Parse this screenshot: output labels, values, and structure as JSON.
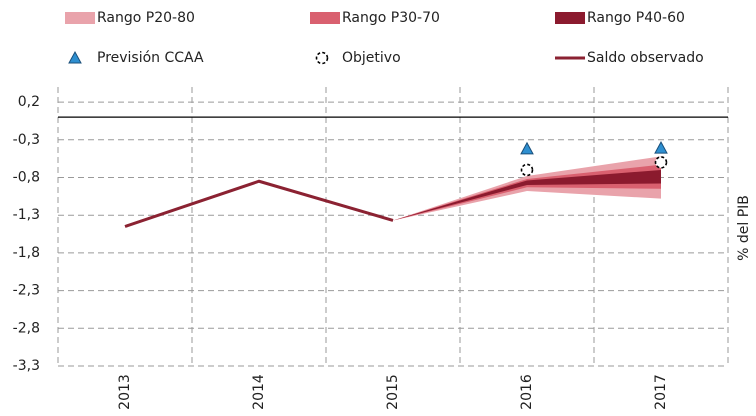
{
  "chart_data": {
    "type": "fan",
    "y_label": "% del PIB",
    "categories": [
      "2013",
      "2014",
      "2015",
      "2016",
      "2017"
    ],
    "ylim": [
      -3.3,
      0.4
    ],
    "yticks": [
      {
        "value": 0.2,
        "label": "0,2"
      },
      {
        "value": -0.3,
        "label": "-0,3"
      },
      {
        "value": -0.8,
        "label": "-0,8"
      },
      {
        "value": -1.3,
        "label": "-1,3"
      },
      {
        "value": -1.8,
        "label": "-1,8"
      },
      {
        "value": -2.3,
        "label": "-2,3"
      },
      {
        "value": -2.8,
        "label": "-2,8"
      },
      {
        "value": -3.3,
        "label": "-3,3"
      }
    ],
    "grid": true,
    "bands": [
      {
        "name": "Rango P20-80",
        "color": "#e9a3ab",
        "low": [
          null,
          null,
          -1.37,
          -0.98,
          -1.08
        ],
        "high": [
          null,
          null,
          -1.37,
          -0.78,
          -0.52
        ]
      },
      {
        "name": "Rango P30-70",
        "color": "#d9606f",
        "low": [
          null,
          null,
          -1.37,
          -0.93,
          -0.95
        ],
        "high": [
          null,
          null,
          -1.37,
          -0.82,
          -0.63
        ]
      },
      {
        "name": "Rango P40-60",
        "color": "#8b1a2e",
        "low": [
          null,
          null,
          -1.37,
          -0.9,
          -0.88
        ],
        "high": [
          null,
          null,
          -1.37,
          -0.84,
          -0.7
        ]
      }
    ],
    "series": [
      {
        "name": "Previsión CCAA",
        "marker": "triangle",
        "color": "#2e8fd0",
        "values": [
          null,
          null,
          null,
          -0.42,
          -0.41
        ]
      },
      {
        "name": "Objetivo",
        "marker": "circle",
        "color": "#000000",
        "values": [
          null,
          null,
          null,
          -0.7,
          -0.6
        ]
      },
      {
        "name": "Saldo observado",
        "marker": "line",
        "color": "#8b2232",
        "values": [
          -1.45,
          -0.85,
          -1.37,
          null,
          null
        ]
      }
    ]
  }
}
